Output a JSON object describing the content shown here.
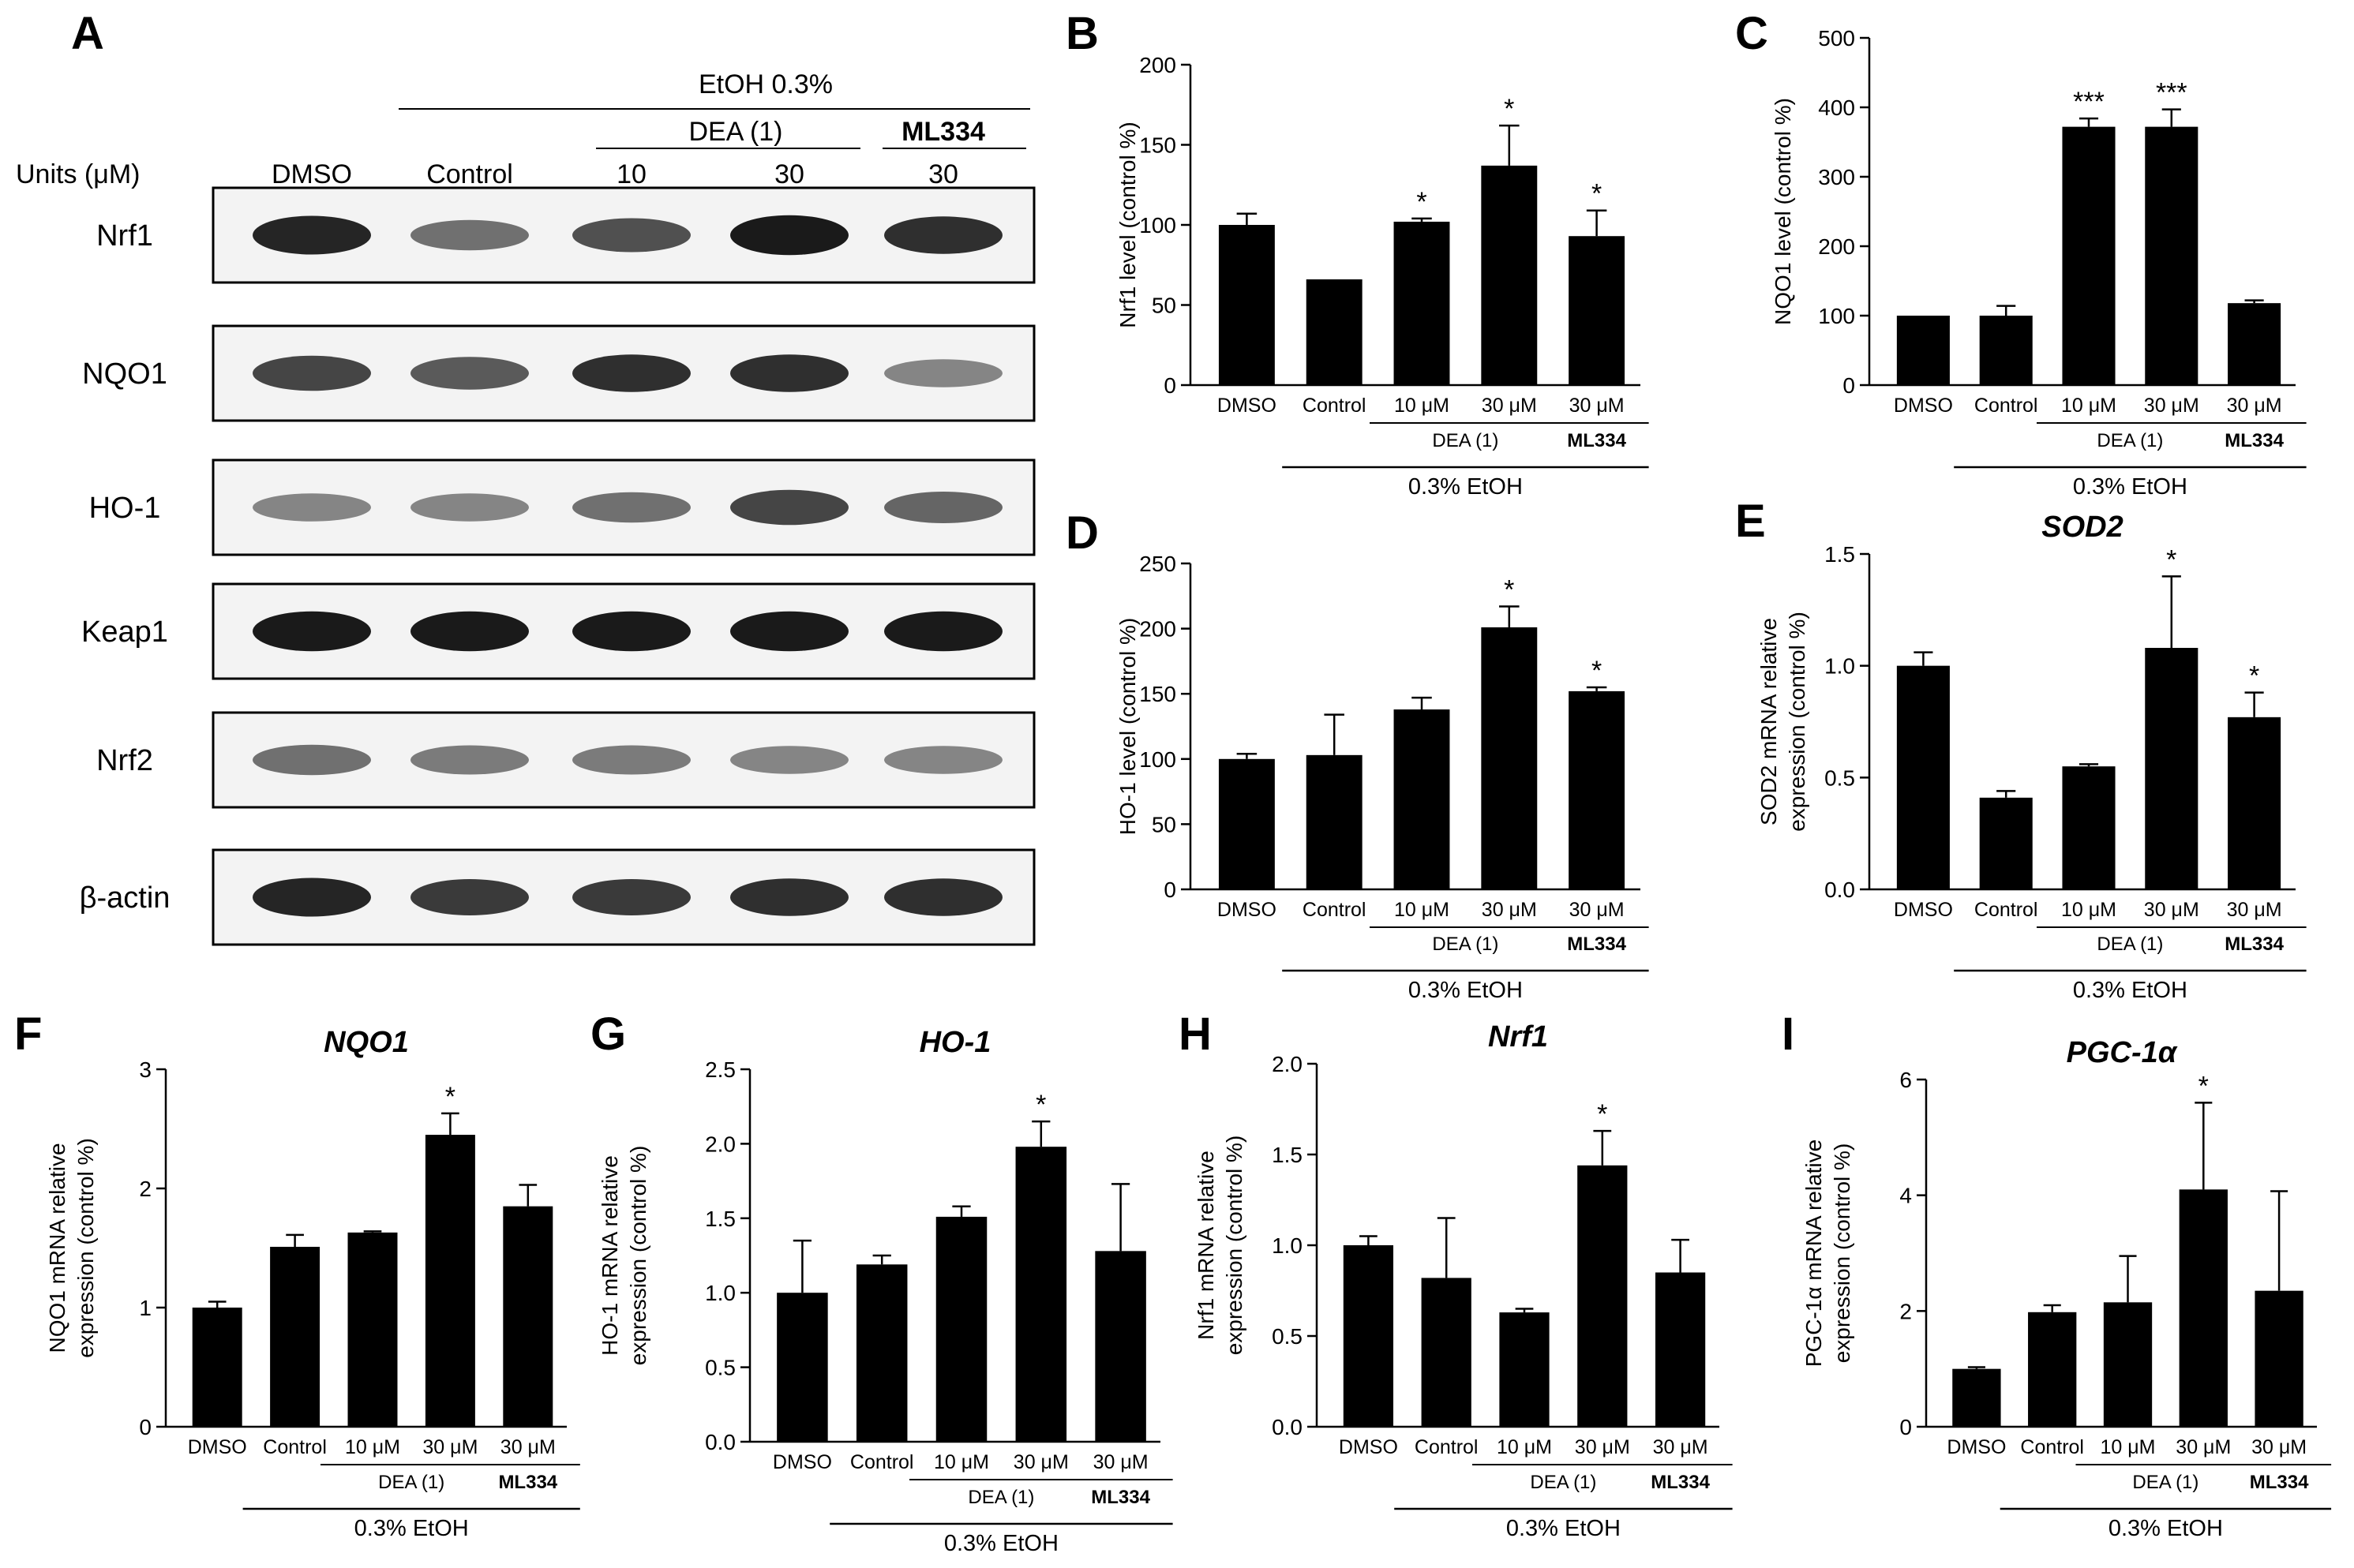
{
  "blot": {
    "letter": "A",
    "units_label": "Units  (μM)",
    "etoh_label": "EtOH 0.3%",
    "dea_label": "DEA (1)",
    "ml334_label": "ML334",
    "lanes": [
      "DMSO",
      "Control",
      "10",
      "30",
      "30"
    ],
    "rows": [
      {
        "name": "Nrf1",
        "intensities": [
          0.9,
          0.55,
          0.7,
          0.95,
          0.85
        ]
      },
      {
        "name": "NQO1",
        "intensities": [
          0.75,
          0.65,
          0.85,
          0.85,
          0.45
        ]
      },
      {
        "name": "HO-1",
        "intensities": [
          0.45,
          0.45,
          0.55,
          0.75,
          0.6
        ]
      },
      {
        "name": "Keap1",
        "intensities": [
          0.95,
          0.95,
          0.95,
          0.95,
          0.95
        ]
      },
      {
        "name": "Nrf2",
        "intensities": [
          0.55,
          0.5,
          0.5,
          0.45,
          0.45
        ]
      },
      {
        "name": "β-actin",
        "intensities": [
          0.9,
          0.8,
          0.8,
          0.85,
          0.85
        ]
      }
    ]
  },
  "chart_data": [
    {
      "letter": "B",
      "type": "bar",
      "title": "",
      "ylabel": "Nrf1 level (control %)",
      "categories": [
        "DMSO",
        "Control",
        "10 μM",
        "30 μM",
        "30 μM"
      ],
      "values": [
        100,
        66,
        102,
        137,
        93
      ],
      "errors": [
        7,
        0,
        2,
        25,
        16
      ],
      "significance": [
        "",
        "",
        "*",
        "*",
        "*"
      ],
      "ylim": [
        0,
        200
      ],
      "yticks": [
        "0",
        "50",
        "100",
        "150",
        "200"
      ],
      "group_labels": {
        "dea": "DEA (1)",
        "ml": "ML334",
        "etoh": "0.3% EtOH"
      }
    },
    {
      "letter": "C",
      "type": "bar",
      "title": "",
      "ylabel": "NQO1 level (control %)",
      "categories": [
        "DMSO",
        "Control",
        "10 μM",
        "30 μM",
        "30 μM"
      ],
      "values": [
        100,
        100,
        372,
        372,
        118
      ],
      "errors": [
        0,
        14,
        12,
        25,
        4
      ],
      "significance": [
        "",
        "",
        "***",
        "***",
        ""
      ],
      "ylim": [
        0,
        500
      ],
      "yticks": [
        "0",
        "100",
        "200",
        "300",
        "400",
        "500"
      ],
      "group_labels": {
        "dea": "DEA (1)",
        "ml": "ML334",
        "etoh": "0.3% EtOH"
      }
    },
    {
      "letter": "D",
      "type": "bar",
      "title": "",
      "ylabel": "HO-1 level (control %)",
      "categories": [
        "DMSO",
        "Control",
        "10 μM",
        "30 μM",
        "30 μM"
      ],
      "values": [
        100,
        103,
        138,
        201,
        152
      ],
      "errors": [
        4,
        31,
        9,
        16,
        3
      ],
      "significance": [
        "",
        "",
        "",
        "*",
        "*"
      ],
      "ylim": [
        0,
        250
      ],
      "yticks": [
        "0",
        "50",
        "100",
        "150",
        "200",
        "250"
      ],
      "group_labels": {
        "dea": "DEA (1)",
        "ml": "ML334",
        "etoh": "0.3% EtOH"
      }
    },
    {
      "letter": "E",
      "type": "bar",
      "title": "SOD2",
      "ylabel_lines": [
        "SOD2 mRNA relative",
        "expression (control %)"
      ],
      "categories": [
        "DMSO",
        "Control",
        "10 μM",
        "30 μM",
        "30 μM"
      ],
      "values": [
        1.0,
        0.41,
        0.55,
        1.08,
        0.77
      ],
      "errors": [
        0.06,
        0.03,
        0.01,
        0.32,
        0.11
      ],
      "significance": [
        "",
        "",
        "",
        "*",
        "*"
      ],
      "ylim": [
        0,
        1.5
      ],
      "yticks": [
        "0.0",
        "0.5",
        "1.0",
        "1.5"
      ],
      "group_labels": {
        "dea": "DEA (1)",
        "ml": "ML334",
        "etoh": "0.3% EtOH"
      }
    },
    {
      "letter": "F",
      "type": "bar",
      "title": "NQO1",
      "ylabel_lines": [
        "NQO1 mRNA relative",
        "expression (control %)"
      ],
      "categories": [
        "DMSO",
        "Control",
        "10 μM",
        "30 μM",
        "30 μM"
      ],
      "values": [
        1.0,
        1.51,
        1.63,
        2.45,
        1.85
      ],
      "errors": [
        0.05,
        0.1,
        0.01,
        0.18,
        0.18
      ],
      "significance": [
        "",
        "",
        "",
        "*",
        ""
      ],
      "ylim": [
        0,
        3
      ],
      "yticks": [
        "0",
        "1",
        "2",
        "3"
      ],
      "group_labels": {
        "dea": "DEA (1)",
        "ml": "ML334",
        "etoh": "0.3% EtOH"
      }
    },
    {
      "letter": "G",
      "type": "bar",
      "title": "HO-1",
      "ylabel_lines": [
        "HO-1 mRNA relative",
        "expression (control %)"
      ],
      "categories": [
        "DMSO",
        "Control",
        "10 μM",
        "30 μM",
        "30 μM"
      ],
      "values": [
        1.0,
        1.19,
        1.51,
        1.98,
        1.28
      ],
      "errors": [
        0.35,
        0.06,
        0.07,
        0.17,
        0.45
      ],
      "significance": [
        "",
        "",
        "",
        "*",
        ""
      ],
      "ylim": [
        0,
        2.5
      ],
      "yticks": [
        "0.0",
        "0.5",
        "1.0",
        "1.5",
        "2.0",
        "2.5"
      ],
      "group_labels": {
        "dea": "DEA (1)",
        "ml": "ML334",
        "etoh": "0.3% EtOH"
      }
    },
    {
      "letter": "H",
      "type": "bar",
      "title": "Nrf1",
      "ylabel_lines": [
        "Nrf1 mRNA relative",
        "expression (control %)"
      ],
      "categories": [
        "DMSO",
        "Control",
        "10 μM",
        "30 μM",
        "30 μM"
      ],
      "values": [
        1.0,
        0.82,
        0.63,
        1.44,
        0.85
      ],
      "errors": [
        0.05,
        0.33,
        0.02,
        0.19,
        0.18
      ],
      "significance": [
        "",
        "",
        "",
        "*",
        ""
      ],
      "ylim": [
        0,
        2.0
      ],
      "yticks": [
        "0.0",
        "0.5",
        "1.0",
        "1.5",
        "2.0"
      ],
      "group_labels": {
        "dea": "DEA (1)",
        "ml": "ML334",
        "etoh": "0.3% EtOH"
      }
    },
    {
      "letter": "I",
      "type": "bar",
      "title": "PGC-1α",
      "ylabel_lines": [
        "PGC-1α mRNA relative",
        "expression (control %)"
      ],
      "categories": [
        "DMSO",
        "Control",
        "10 μM",
        "30 μM",
        "30 μM"
      ],
      "values": [
        1.0,
        1.98,
        2.15,
        4.1,
        2.35
      ],
      "errors": [
        0.03,
        0.12,
        0.8,
        1.5,
        1.72
      ],
      "significance": [
        "",
        "",
        "",
        "*",
        ""
      ],
      "ylim": [
        0,
        6
      ],
      "yticks": [
        "0",
        "2",
        "4",
        "6"
      ],
      "group_labels": {
        "dea": "DEA (1)",
        "ml": "ML334",
        "etoh": "0.3% EtOH"
      }
    }
  ]
}
